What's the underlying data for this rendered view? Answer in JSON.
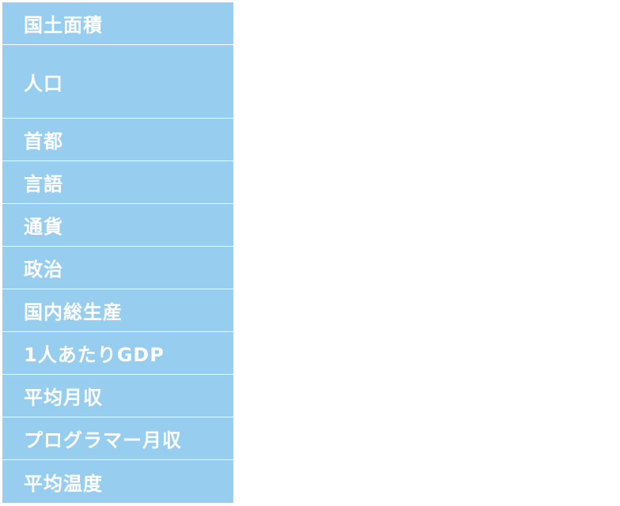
{
  "table": {
    "header_color": "#97cdef",
    "rows": [
      {
        "label": "国土面積"
      },
      {
        "label": "人口"
      },
      {
        "label": "首都"
      },
      {
        "label": "言語"
      },
      {
        "label": "通貨"
      },
      {
        "label": "政治"
      },
      {
        "label": "国内総生産"
      },
      {
        "label": "1人あたりGDP"
      },
      {
        "label": "平均月収"
      },
      {
        "label": "プログラマー月収"
      },
      {
        "label": "平均温度"
      }
    ]
  }
}
